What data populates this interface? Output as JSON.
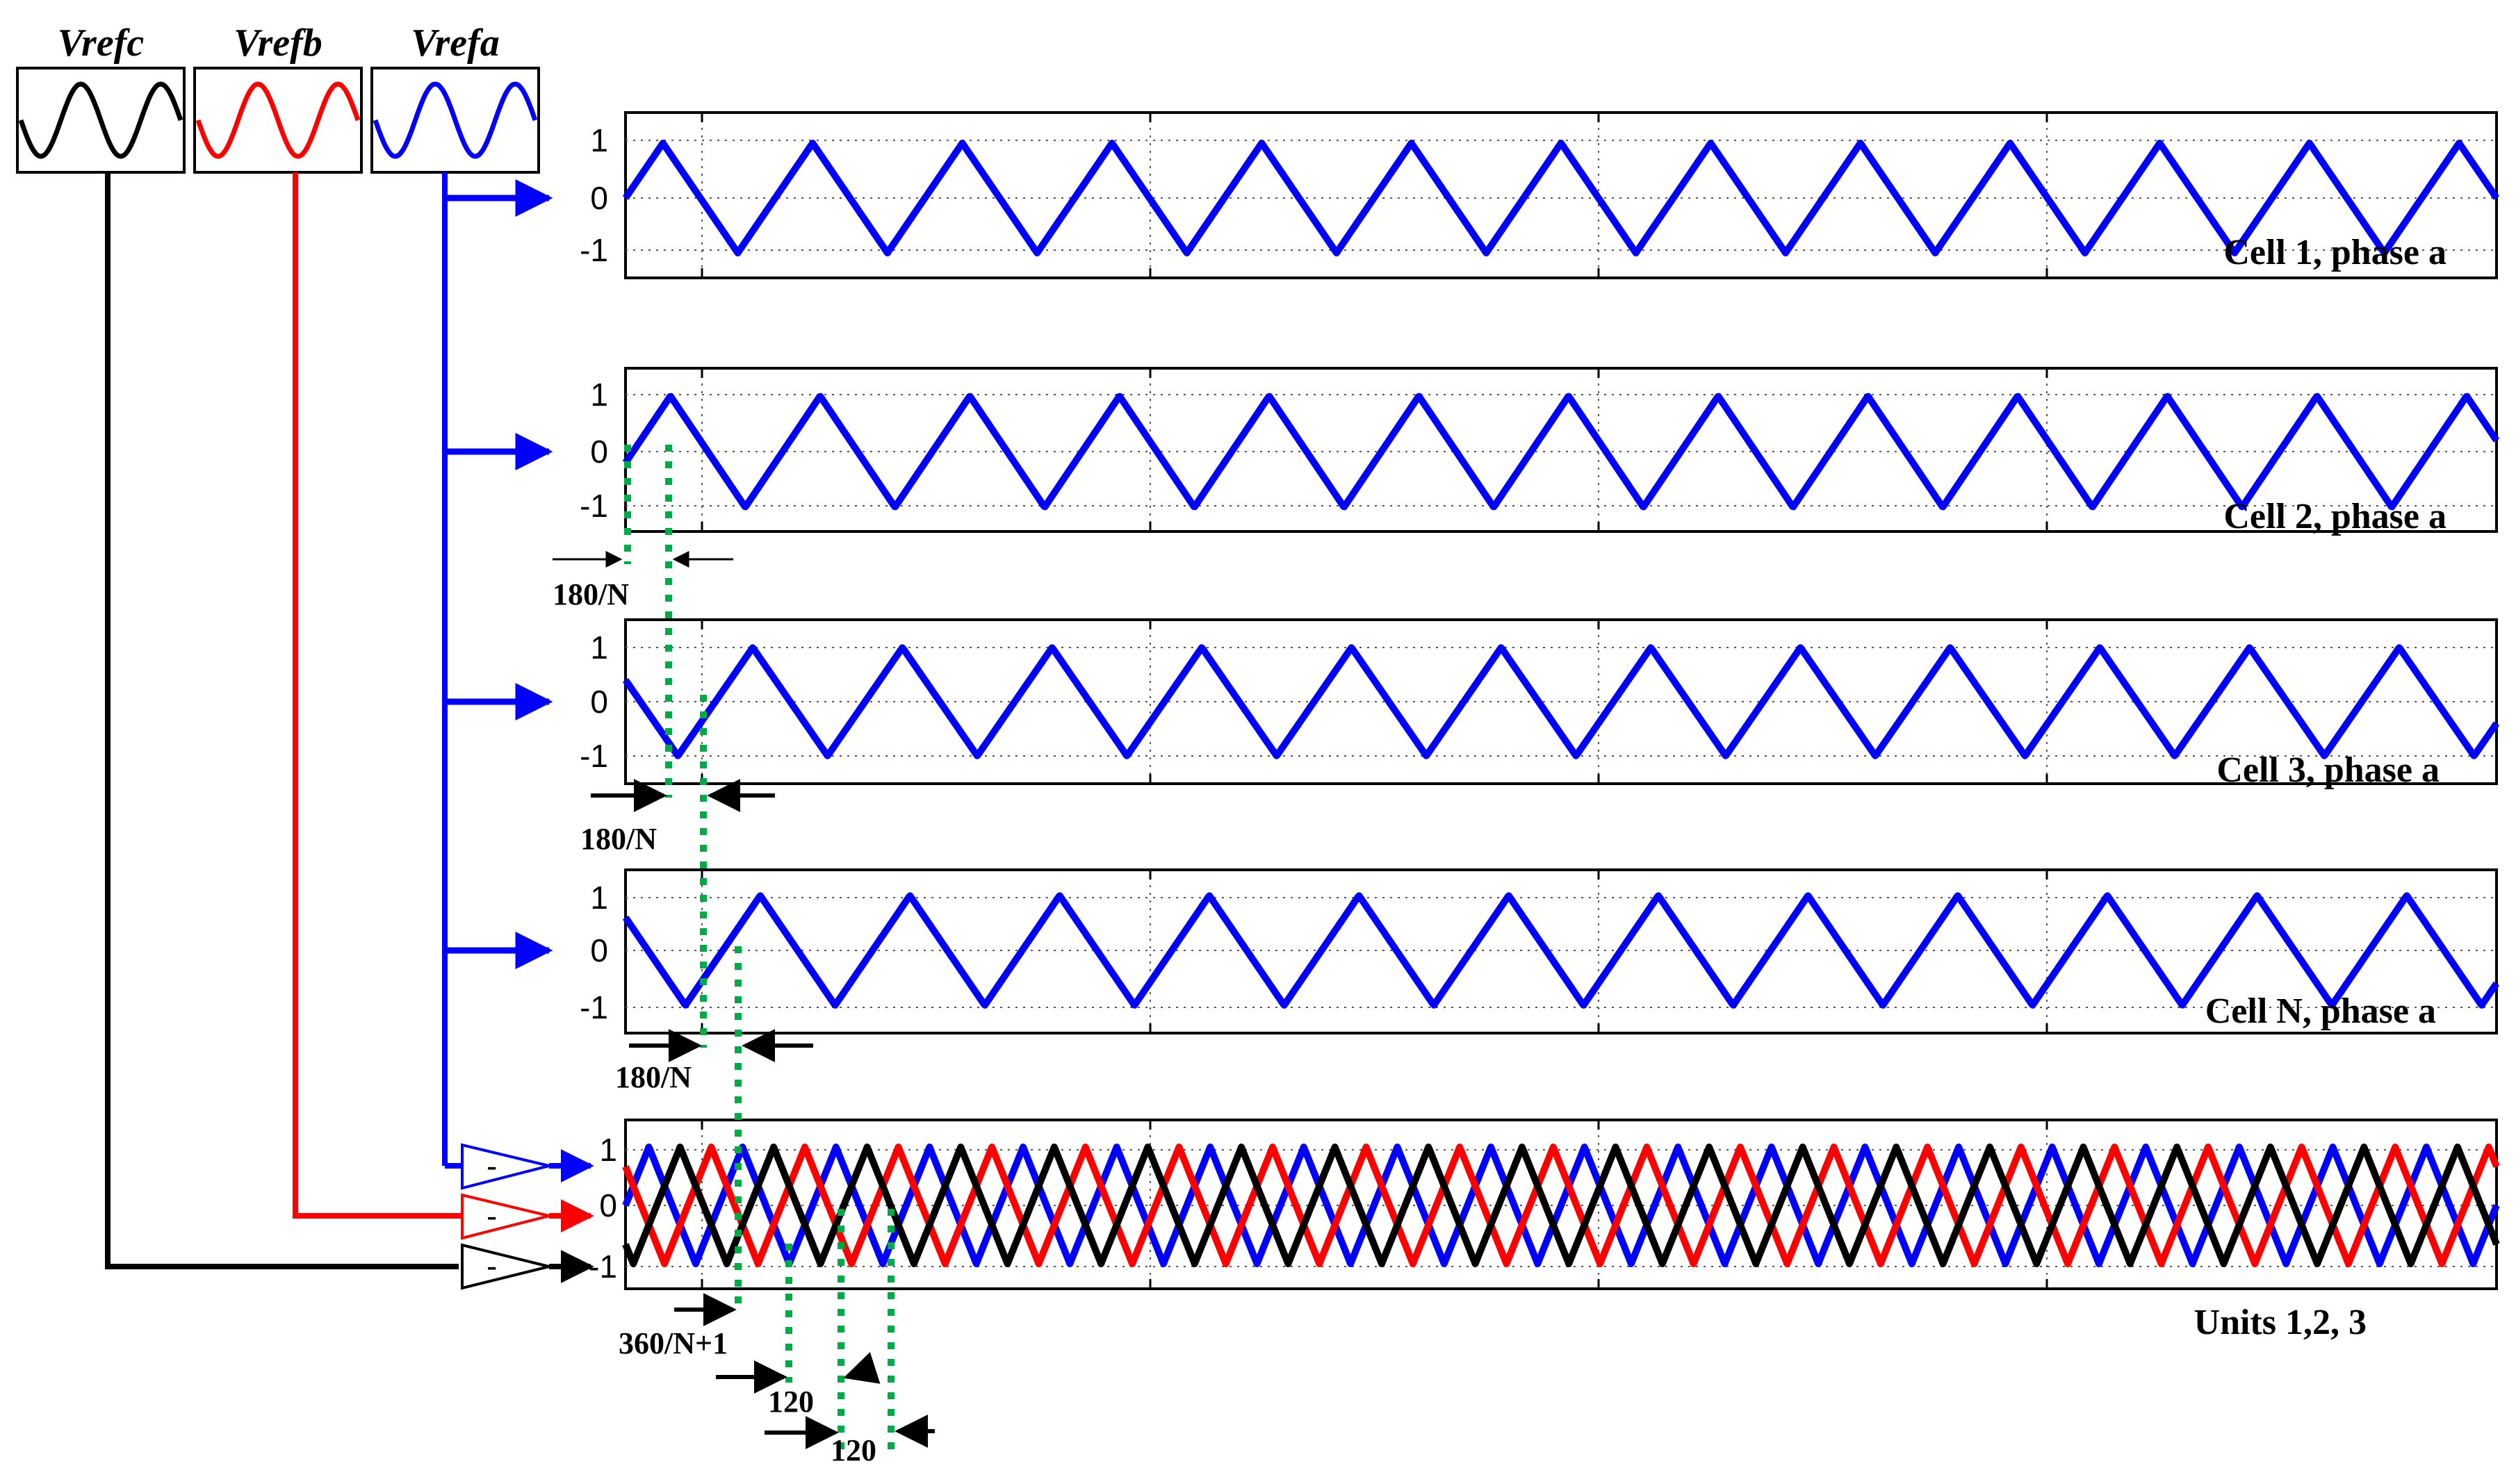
{
  "references": [
    {
      "label": "Vrefc",
      "color": "#000000"
    },
    {
      "label": "Vrefb",
      "color": "#ff0000"
    },
    {
      "label": "Vrefa",
      "color": "#0000ff"
    }
  ],
  "chart_data": [
    {
      "type": "line",
      "title": "Cell 1, phase a",
      "yticks": [
        "1",
        "0",
        "-1"
      ],
      "ylim": [
        -1,
        1
      ],
      "grid": true,
      "series": [
        {
          "color": "#0000ff",
          "periods": 12.5,
          "shift_fraction": 0.0,
          "phase": "up"
        }
      ]
    },
    {
      "type": "line",
      "title": "Cell 2, phase a",
      "yticks": [
        "1",
        "0",
        "-1"
      ],
      "ylim": [
        -1,
        1
      ],
      "grid": true,
      "series": [
        {
          "color": "#0000ff",
          "periods": 12.5,
          "shift_fraction": 0.05,
          "phase": "up"
        }
      ]
    },
    {
      "type": "line",
      "title": "Cell 3, phase a",
      "yticks": [
        "1",
        "0",
        "-1"
      ],
      "ylim": [
        -1,
        1
      ],
      "grid": true,
      "series": [
        {
          "color": "#0000ff",
          "periods": 12.5,
          "shift_fraction": 0.1,
          "phase": "down"
        }
      ]
    },
    {
      "type": "line",
      "title": "Cell N, phase a",
      "yticks": [
        "1",
        "0",
        "-1"
      ],
      "ylim": [
        -1,
        1
      ],
      "grid": true,
      "series": [
        {
          "color": "#0000ff",
          "periods": 12.5,
          "shift_fraction": 0.15,
          "phase": "down"
        }
      ]
    },
    {
      "type": "line",
      "title": "Units 1,2, 3",
      "yticks": [
        "1",
        "0",
        "-1"
      ],
      "ylim": [
        -1,
        1
      ],
      "grid": true,
      "series": [
        {
          "color": "#0000ff",
          "periods": 20,
          "offset_deg": 0
        },
        {
          "color": "#ff0000",
          "periods": 20,
          "offset_deg": 120
        },
        {
          "color": "#000000",
          "periods": 20,
          "offset_deg": 240
        }
      ]
    }
  ],
  "annotations": {
    "shift_cell2": "180/N",
    "shift_cell3": "180/N",
    "shift_cellN": "180/N",
    "shift_units": "360/N+1",
    "shift_120_first": "120",
    "shift_120_second": "120"
  },
  "amplifier_label": "-",
  "colors": {
    "blue": "#0000ff",
    "red": "#ff0000",
    "black": "#000000",
    "green": "#00aa44"
  }
}
